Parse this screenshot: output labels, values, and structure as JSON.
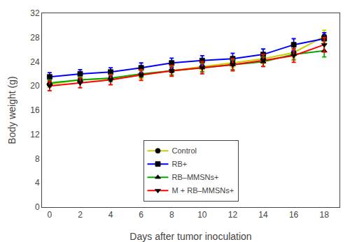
{
  "chart_data": {
    "type": "line",
    "xlabel": "Days after tumor inoculation",
    "ylabel": "Body weight (g)",
    "x": [
      0,
      2,
      4,
      6,
      8,
      10,
      12,
      14,
      16,
      18
    ],
    "series": [
      {
        "name": "Control",
        "color": "#cccc00",
        "marker": "circle",
        "values": [
          20.3,
          21.0,
          21.2,
          21.8,
          22.5,
          23.2,
          23.8,
          24.5,
          25.5,
          28.2
        ],
        "errors": [
          0.5,
          0.5,
          0.5,
          0.6,
          0.7,
          0.7,
          0.7,
          0.8,
          0.9,
          1.0
        ]
      },
      {
        "name": "RB+",
        "color": "#0000ff",
        "marker": "square",
        "values": [
          21.5,
          22.0,
          22.3,
          23.0,
          23.8,
          24.2,
          24.5,
          25.2,
          26.8,
          27.8
        ],
        "errors": [
          0.7,
          0.7,
          0.7,
          0.8,
          0.8,
          0.8,
          0.9,
          0.9,
          1.0,
          1.0
        ]
      },
      {
        "name": "RB–MMSNs+",
        "color": "#00aa00",
        "marker": "triangle-up",
        "values": [
          20.5,
          21.0,
          21.3,
          22.0,
          22.5,
          23.0,
          23.5,
          24.0,
          25.2,
          25.8
        ],
        "errors": [
          0.5,
          0.5,
          0.6,
          0.6,
          0.7,
          0.7,
          0.8,
          0.8,
          0.9,
          1.0
        ]
      },
      {
        "name": "M + RB–MMSNs+",
        "color": "#ff0000",
        "marker": "triangle-down",
        "values": [
          20.0,
          20.5,
          21.0,
          21.8,
          22.5,
          23.0,
          23.5,
          24.2,
          25.0,
          26.8
        ],
        "errors": [
          0.8,
          0.8,
          0.8,
          0.9,
          0.9,
          1.0,
          1.0,
          1.0,
          1.1,
          1.2
        ]
      }
    ],
    "xlim": [
      -0.5,
      19.0
    ],
    "xticks": [
      0,
      2,
      4,
      6,
      8,
      10,
      12,
      14,
      16,
      18
    ],
    "ylim": [
      0,
      32
    ],
    "yticks": [
      0,
      4,
      8,
      12,
      16,
      20,
      24,
      28,
      32
    ],
    "grid": false,
    "legend": "lower center"
  }
}
